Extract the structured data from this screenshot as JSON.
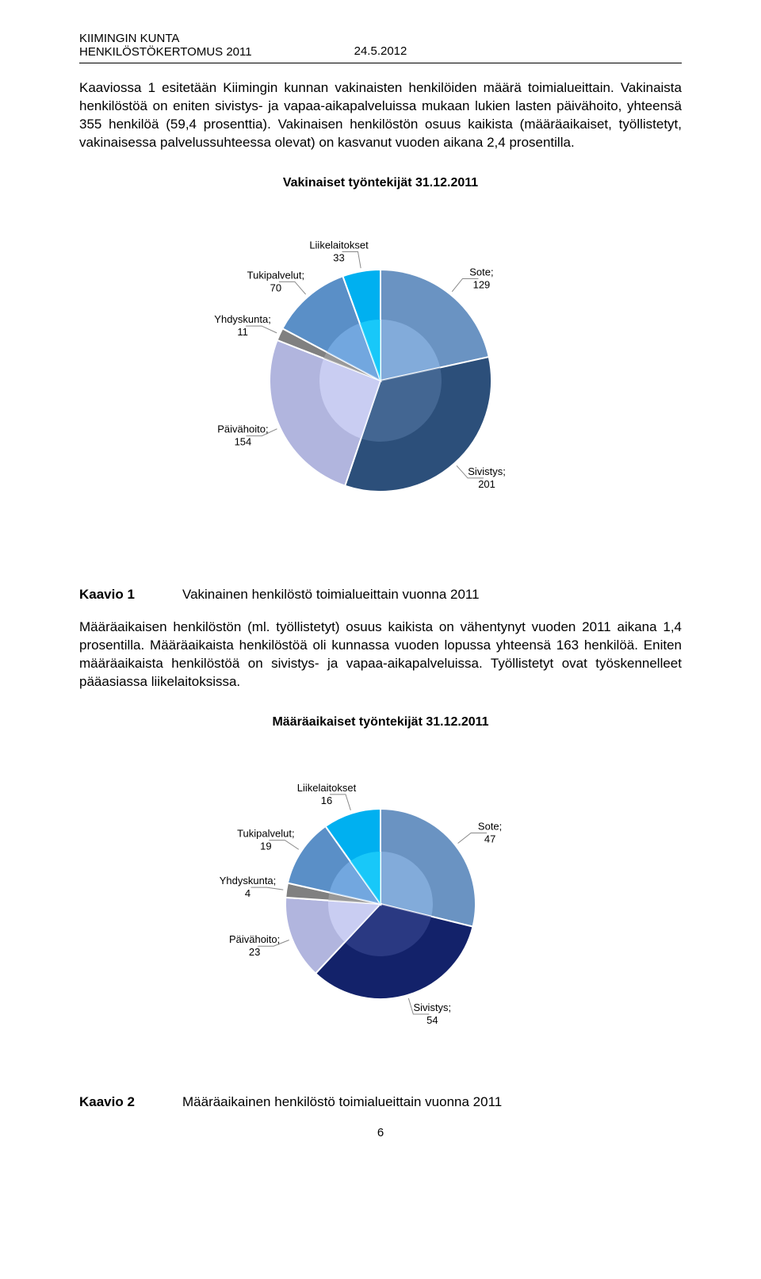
{
  "header": {
    "org": "KIIMINGIN KUNTA",
    "doc": "HENKILÖSTÖKERTOMUS 2011",
    "date": "24.5.2012"
  },
  "para1": "Kaaviossa 1 esitetään Kiimingin kunnan vakinaisten henkilöiden määrä toimialueittain. Vakinaista henkilöstöä on eniten sivistys- ja vapaa-aikapalveluissa mukaan lukien lasten päivähoito, yhteensä 355 henkilöä (59,4 prosenttia). Vakinaisen henkilöstön osuus kaikista (määräaikaiset, työllistetyt, vakinaisessa palvelussuhteessa olevat) on kasvanut vuoden aikana 2,4 prosentilla.",
  "chart1": {
    "type": "pie",
    "title": "Vakinaiset työntekijät 31.12.2011",
    "title_fontsize": 16,
    "background_color": "#ffffff",
    "label_fontsize": 13,
    "radius": 140,
    "slices": [
      {
        "label_l1": "Sote;",
        "label_l2": "129",
        "value": 129,
        "color": "#6a93c2"
      },
      {
        "label_l1": "Sivistys;",
        "label_l2": "201",
        "value": 201,
        "color": "#2c4f7a"
      },
      {
        "label_l1": "Päivähoito;",
        "label_l2": "154",
        "value": 154,
        "color": "#b1b5de"
      },
      {
        "label_l1": "Yhdyskunta;",
        "label_l2": "11",
        "value": 11,
        "color": "#808080"
      },
      {
        "label_l1": "Tukipalvelut;",
        "label_l2": "70",
        "value": 70,
        "color": "#5a8fc7"
      },
      {
        "label_l1": "Liikelaitokset",
        "label_l2": "33",
        "value": 33,
        "color": "#00b0f0"
      }
    ]
  },
  "caption1": {
    "label": "Kaavio 1",
    "text": "Vakinainen henkilöstö toimialueittain vuonna 2011"
  },
  "para2": "Määräaikaisen henkilöstön (ml. työllistetyt) osuus kaikista on vähentynyt vuoden 2011 aikana 1,4 prosentilla. Määräaikaista henkilöstöä oli kunnassa vuoden lopussa yhteensä 163 henkilöä. Eniten määräaikaista henkilöstöä on sivistys- ja vapaa-aikapalveluissa. Työllistetyt ovat työskennelleet pääasiassa liikelaitoksissa.",
  "chart2": {
    "type": "pie",
    "title": "Määräaikaiset työntekijät 31.12.2011",
    "title_fontsize": 16,
    "background_color": "#ffffff",
    "label_fontsize": 13,
    "radius": 120,
    "slices": [
      {
        "label_l1": "Sote;",
        "label_l2": "47",
        "value": 47,
        "color": "#6a93c2"
      },
      {
        "label_l1": "Sivistys;",
        "label_l2": "54",
        "value": 54,
        "color": "#13226a"
      },
      {
        "label_l1": "Päivähoito;",
        "label_l2": "23",
        "value": 23,
        "color": "#b1b5de"
      },
      {
        "label_l1": "Yhdyskunta;",
        "label_l2": "4",
        "value": 4,
        "color": "#808080"
      },
      {
        "label_l1": "Tukipalvelut;",
        "label_l2": "19",
        "value": 19,
        "color": "#5a8fc7"
      },
      {
        "label_l1": "Liikelaitokset",
        "label_l2": "16",
        "value": 16,
        "color": "#00b0f0"
      }
    ]
  },
  "caption2": {
    "label": "Kaavio 2",
    "text": "Määräaikainen henkilöstö toimialueittain vuonna 2011"
  },
  "page_number": "6"
}
